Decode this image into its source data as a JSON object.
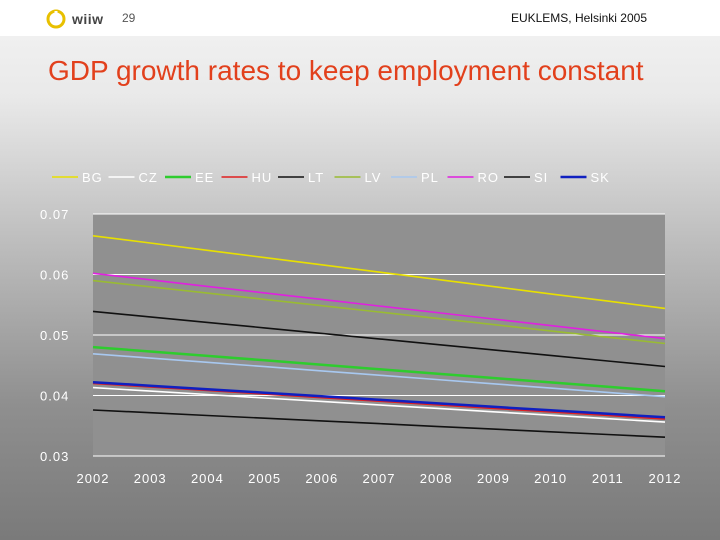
{
  "header": {
    "logo_text": "wiiw",
    "slide_number": "29",
    "event": "EUKLEMS, Helsinki 2005"
  },
  "title": "GDP growth rates to keep employment constant",
  "colors": {
    "title": "#e2401c"
  },
  "chart_data": {
    "type": "line",
    "title": "",
    "xlabel": "",
    "ylabel": "",
    "x": [
      2002,
      2003,
      2004,
      2005,
      2006,
      2007,
      2008,
      2009,
      2010,
      2011,
      2012
    ],
    "ylim": [
      0.03,
      0.07
    ],
    "yticks": [
      "0.07",
      "0.06",
      "0.05",
      "0.04",
      "0.03"
    ],
    "ytick_values": [
      0.07,
      0.06,
      0.05,
      0.04,
      0.03
    ],
    "xtick_labels": [
      "2002",
      "2003",
      "2004",
      "2005",
      "2006",
      "2007",
      "2008",
      "2009",
      "2010",
      "2011",
      "2012"
    ],
    "grid": "horizontal",
    "legend_position": "top",
    "series": [
      {
        "name": "BG",
        "color": "#e8e000",
        "start": 0.0664,
        "end": 0.0544
      },
      {
        "name": "CZ",
        "color": "#ffffff",
        "start": 0.0413,
        "end": 0.0356
      },
      {
        "name": "EE",
        "color": "#2ecc2e",
        "start": 0.048,
        "end": 0.0407
      },
      {
        "name": "HU",
        "color": "#e02020",
        "start": 0.042,
        "end": 0.0361
      },
      {
        "name": "LT",
        "color": "#111111",
        "start": 0.0539,
        "end": 0.0448
      },
      {
        "name": "LV",
        "color": "#99bb33",
        "start": 0.059,
        "end": 0.0486
      },
      {
        "name": "PL",
        "color": "#a8c8f0",
        "start": 0.0469,
        "end": 0.0398
      },
      {
        "name": "RO",
        "color": "#e020e0",
        "start": 0.0602,
        "end": 0.0494
      },
      {
        "name": "SI",
        "color": "#111111",
        "start": 0.0376,
        "end": 0.0331
      },
      {
        "name": "SK",
        "color": "#1020c0",
        "start": 0.0422,
        "end": 0.0364
      }
    ]
  }
}
